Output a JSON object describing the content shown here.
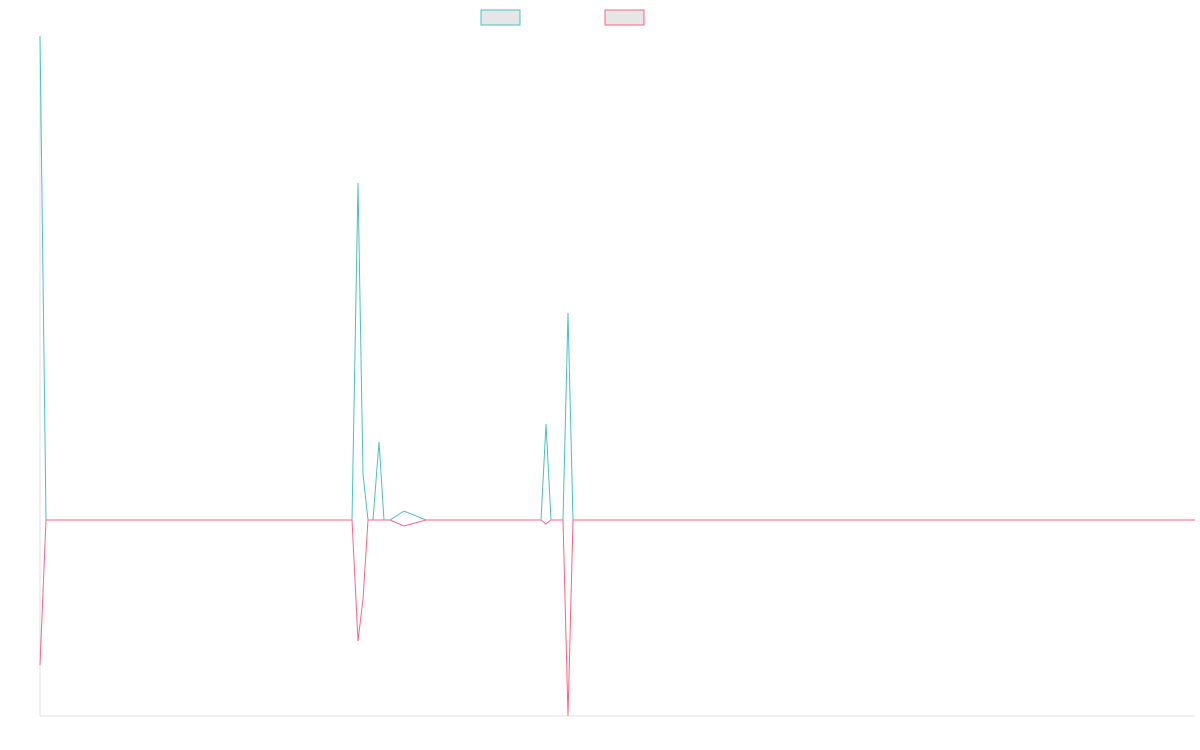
{
  "chart_data": {
    "type": "line",
    "x": [
      0,
      6,
      312,
      318,
      323,
      328,
      333,
      339,
      344,
      350,
      364,
      386,
      501,
      506,
      511,
      523,
      528,
      533,
      1155
    ],
    "series": [
      {
        "color": "#4bc0c0",
        "values": [
          484,
          0,
          0,
          337,
          46,
          0,
          0,
          78,
          0,
          0,
          9,
          0,
          0,
          96,
          0,
          0,
          207,
          0,
          0
        ]
      },
      {
        "color": "#ff6384",
        "values": [
          -145,
          0,
          0,
          -121,
          -79,
          0,
          0,
          0,
          0,
          0,
          -6,
          0,
          0,
          -4,
          0,
          0,
          -196,
          0,
          0
        ]
      }
    ],
    "xlim": [
      0,
      1155
    ],
    "ylim": [
      -196,
      484
    ],
    "legend": "top"
  }
}
